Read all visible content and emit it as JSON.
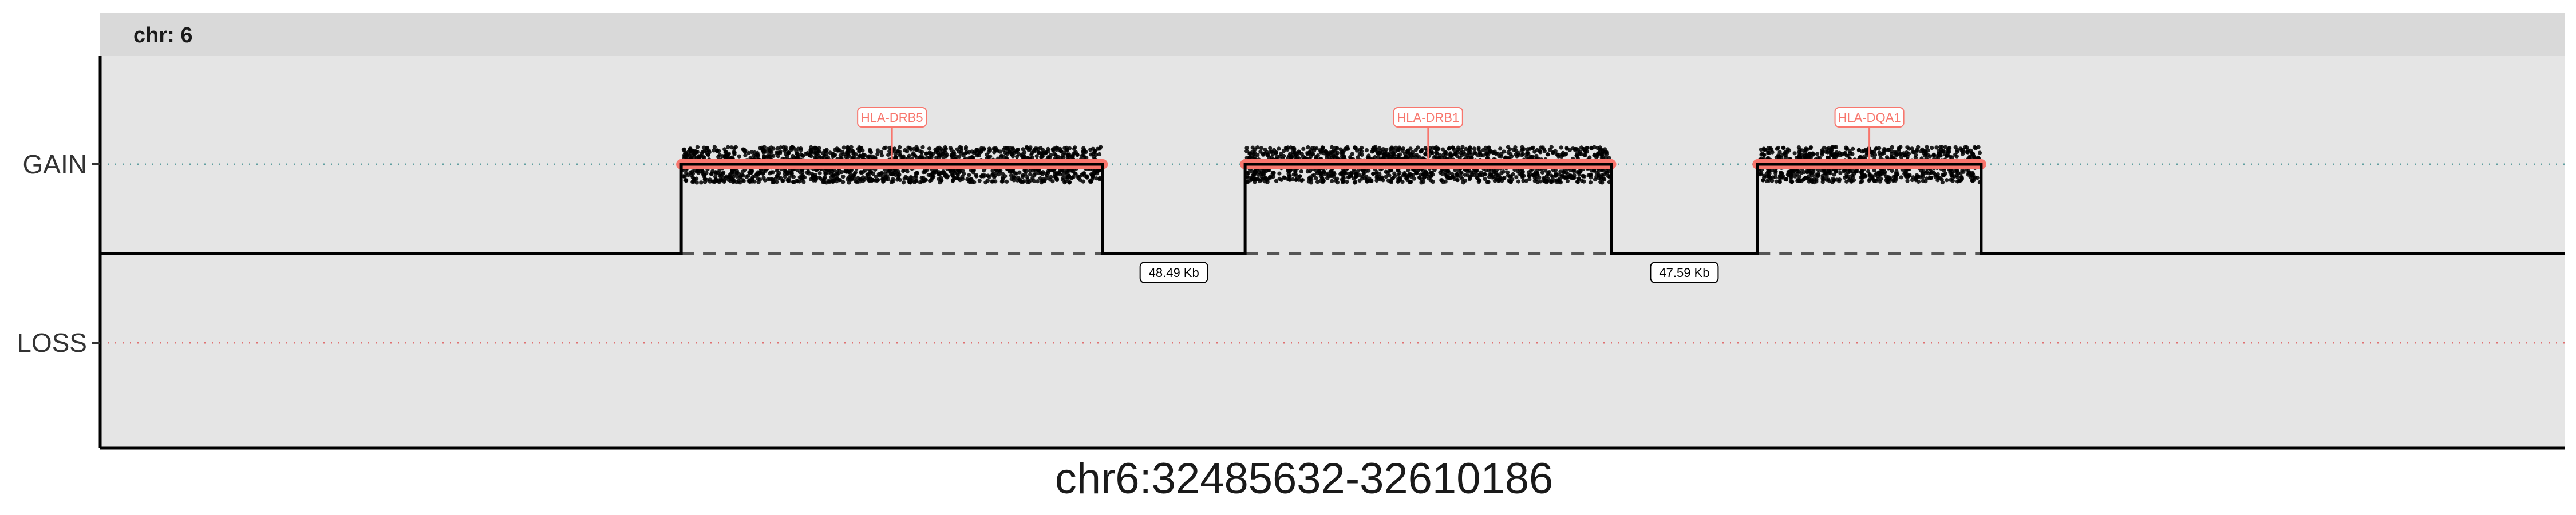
{
  "chart_data": {
    "type": "scatter",
    "facet_label": "chr: 6",
    "xlabel": "chr6:32485632-32610186",
    "y_categories": [
      "GAIN",
      "LOSS"
    ],
    "xlim": [
      32485632,
      32610186
    ],
    "baseline": "NEUTRAL",
    "segments": [
      {
        "gene": "HLA-DRB5",
        "start": 32515000,
        "end": 32536300,
        "state": "GAIN"
      },
      {
        "gene": "HLA-DRB1",
        "start": 32543500,
        "end": 32562000,
        "state": "GAIN"
      },
      {
        "gene": "HLA-DQA1",
        "start": 32569400,
        "end": 32580700,
        "state": "GAIN"
      }
    ],
    "gaps": [
      {
        "start": 32536300,
        "end": 32543500,
        "label": "48.49 Kb"
      },
      {
        "start": 32562000,
        "end": 32569400,
        "label": "47.59 Kb"
      }
    ],
    "colors": {
      "panel": "#e5e5e5",
      "strip": "#d9d9d9",
      "segment": "#f8766d",
      "gain_line": "#5f9ea0",
      "loss_line": "#e07070",
      "points": "#000000"
    }
  }
}
